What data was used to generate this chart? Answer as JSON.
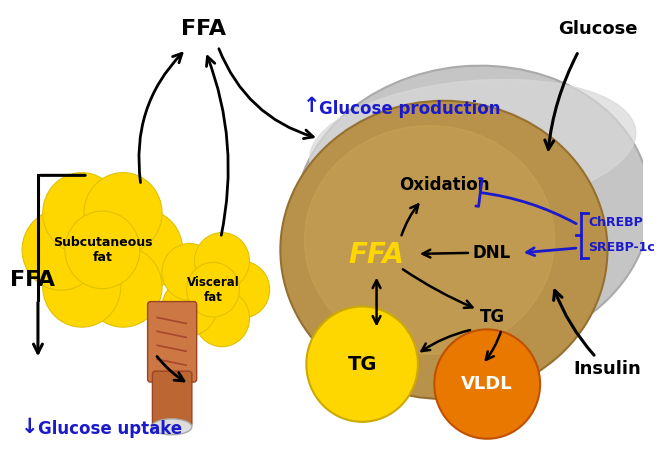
{
  "bg_color": "#ffffff",
  "liver_brown": "#b8924a",
  "liver_gray": "#c8c8c8",
  "yellow_color": "#FFD700",
  "orange_color": "#E87800",
  "blue_color": "#1a1acc",
  "black_color": "#111111",
  "labels": {
    "FFA_top": "FFA",
    "FFA_left": "FFA",
    "subcutaneous": "Subcutaneous\nfat",
    "visceral": "Visceral\nfat",
    "glucose_production": "Glucose production",
    "glucose_uptake": "Glucose uptake",
    "glucose_right": "Glucose",
    "insulin_right": "Insulin",
    "oxidation": "Oxidation",
    "dnl": "DNL",
    "tg_label": "TG",
    "tg_circle": "TG",
    "vldl": "VLDL",
    "chrebp": "ChREBP",
    "srebp": "SREBP-1c",
    "ffa_liver": "FFA"
  }
}
